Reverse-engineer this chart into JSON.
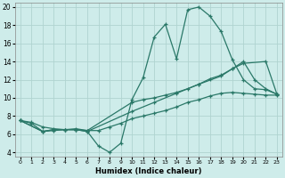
{
  "xlabel": "Humidex (Indice chaleur)",
  "xlim": [
    -0.5,
    23.5
  ],
  "ylim": [
    3.5,
    20.5
  ],
  "xticks": [
    0,
    1,
    2,
    3,
    4,
    5,
    6,
    7,
    8,
    9,
    10,
    11,
    12,
    13,
    14,
    15,
    16,
    17,
    18,
    19,
    20,
    21,
    22,
    23
  ],
  "yticks": [
    4,
    6,
    8,
    10,
    12,
    14,
    16,
    18,
    20
  ],
  "bg_color": "#ceecea",
  "grid_color": "#b0d4d0",
  "line_color": "#2a7868",
  "curve1_x": [
    0,
    1,
    2,
    3,
    4,
    5,
    6,
    7,
    8,
    9,
    10,
    11,
    12,
    13,
    14,
    15,
    16,
    17,
    18,
    19,
    20,
    21,
    22,
    23
  ],
  "curve1_y": [
    7.5,
    7.2,
    6.3,
    6.5,
    6.5,
    6.5,
    6.3,
    4.7,
    4.0,
    5.0,
    9.8,
    12.2,
    16.7,
    18.1,
    14.3,
    19.7,
    20.0,
    19.0,
    17.3,
    14.2,
    12.0,
    11.0,
    10.9,
    10.4
  ],
  "curve2_x": [
    0,
    2,
    3,
    4,
    5,
    6,
    10,
    11,
    12,
    13,
    14,
    15,
    16,
    17,
    18,
    19,
    20,
    22,
    23
  ],
  "curve2_y": [
    7.5,
    6.3,
    6.4,
    6.5,
    6.6,
    6.4,
    9.5,
    9.8,
    10.0,
    10.3,
    10.6,
    11.0,
    11.5,
    12.1,
    12.5,
    13.2,
    13.8,
    14.0,
    10.4
  ],
  "curve3_x": [
    0,
    2,
    3,
    4,
    5,
    6,
    10,
    12,
    14,
    16,
    18,
    19,
    20,
    21,
    22,
    23
  ],
  "curve3_y": [
    7.5,
    6.3,
    6.5,
    6.5,
    6.5,
    6.3,
    8.5,
    9.5,
    10.5,
    11.5,
    12.4,
    13.2,
    14.0,
    12.0,
    11.0,
    10.4
  ],
  "curve4_x": [
    0,
    1,
    2,
    3,
    4,
    5,
    6,
    7,
    8,
    9,
    10,
    11,
    12,
    13,
    14,
    15,
    16,
    17,
    18,
    19,
    20,
    21,
    22,
    23
  ],
  "curve4_y": [
    7.5,
    7.3,
    6.8,
    6.6,
    6.5,
    6.5,
    6.4,
    6.4,
    6.8,
    7.2,
    7.7,
    8.0,
    8.3,
    8.6,
    9.0,
    9.5,
    9.8,
    10.2,
    10.5,
    10.6,
    10.5,
    10.4,
    10.3,
    10.3
  ]
}
